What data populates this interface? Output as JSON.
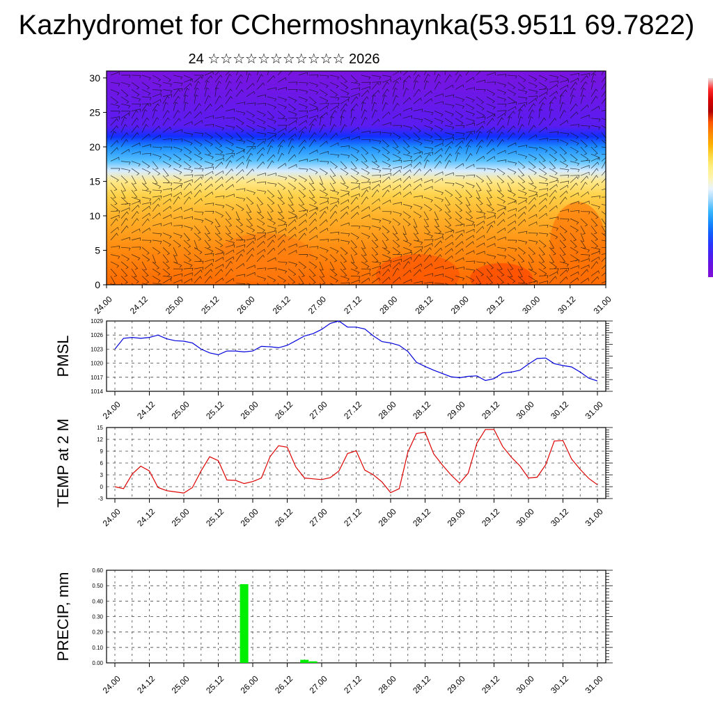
{
  "header": {
    "title": "Kazhydromet for CChermoshnaynka(53.9511 69.7822)",
    "subtitle": "24 ☆☆☆☆☆☆☆☆☆☆☆ 2026"
  },
  "colors": {
    "pmsl_line": "#0000dd",
    "temp_line": "#dd0000",
    "precip_bar": "#00ee00",
    "grid": "#444444",
    "colorbar": [
      "#e8e8e8",
      "#ff2a2a",
      "#d60000",
      "#b00000",
      "#ff5500",
      "#ff8a00",
      "#ffb000",
      "#ffd840",
      "#ffef80",
      "#fff4b0",
      "#e8f4ff",
      "#9fd8ff",
      "#3ab8ff",
      "#1890ff",
      "#1060ff",
      "#2838ff",
      "#4a20f0",
      "#6a10e0",
      "#8010d8"
    ]
  },
  "chart_data": [
    {
      "id": "cross-section",
      "type": "heatmap",
      "title": "",
      "xlabel": "",
      "ylabel": "",
      "ylim": [
        0,
        31
      ],
      "yticks": [
        0,
        5,
        10,
        15,
        20,
        25,
        30
      ],
      "x_tick_labels": [
        "24.00",
        "24.12",
        "25.00",
        "25.12",
        "26.00",
        "26.12",
        "27.00",
        "27.12",
        "28.00",
        "28.12",
        "29.00",
        "29.12",
        "30.00",
        "30.12",
        "31.00"
      ],
      "bands": [
        {
          "level": 0,
          "color": "#ff6a00"
        },
        {
          "level": 5,
          "color": "#ff8a10"
        },
        {
          "level": 10,
          "color": "#ffb22a"
        },
        {
          "level": 13,
          "color": "#ffd24a"
        },
        {
          "level": 15,
          "color": "#ffe88a"
        },
        {
          "level": 16.5,
          "color": "#d8ecff"
        },
        {
          "level": 18,
          "color": "#55c0ff"
        },
        {
          "level": 20,
          "color": "#1c8cff"
        },
        {
          "level": 21.5,
          "color": "#1030ff"
        },
        {
          "level": 23,
          "color": "#5a1cf0"
        },
        {
          "level": 31,
          "color": "#7a14e0"
        }
      ]
    },
    {
      "id": "pmsl",
      "type": "line",
      "ylabel": "PMSL",
      "ylim": [
        1014,
        1029
      ],
      "yticks": [
        1014,
        1017,
        1020,
        1023,
        1026,
        1029
      ],
      "x_tick_labels": [
        "24.00",
        "24.12",
        "25.00",
        "25.12",
        "26.00",
        "26.12",
        "27.00",
        "27.12",
        "28.00",
        "28.12",
        "29.00",
        "29.12",
        "30.00",
        "30.12",
        "31.00"
      ],
      "x": [
        0,
        3,
        6,
        9,
        12,
        15,
        18,
        21,
        24,
        27,
        30,
        33,
        36,
        39,
        42,
        45,
        48,
        51,
        54,
        57,
        60,
        63,
        66,
        69,
        72,
        75,
        78,
        81,
        84,
        87,
        90,
        93,
        96,
        99,
        102,
        105,
        108,
        111,
        114,
        117,
        120,
        123,
        126,
        129,
        132,
        135,
        138,
        141,
        144,
        147,
        150,
        153,
        156,
        159,
        162,
        165,
        168
      ],
      "series": [
        {
          "name": "PMSL",
          "values": [
            1023,
            1025.3,
            1025.5,
            1025.3,
            1025.5,
            1026,
            1025.2,
            1024.8,
            1024.7,
            1024.3,
            1023,
            1022.2,
            1021.8,
            1022.6,
            1022.6,
            1022.4,
            1022.6,
            1023.6,
            1023.5,
            1023.3,
            1023.8,
            1024.8,
            1025.8,
            1026.3,
            1027.2,
            1028.5,
            1029,
            1027.7,
            1027.7,
            1027.3,
            1025.8,
            1024.6,
            1024.3,
            1023.8,
            1022.5,
            1020.2,
            1019.3,
            1018.5,
            1017.8,
            1017.1,
            1016.9,
            1017.2,
            1017.3,
            1016.3,
            1016.7,
            1017.9,
            1018.1,
            1018.5,
            1019.8,
            1021,
            1021.1,
            1019.9,
            1019.5,
            1019.2,
            1018.1,
            1016.8,
            1016.2
          ]
        }
      ]
    },
    {
      "id": "temp2m",
      "type": "line",
      "ylabel": "TEMP at 2 M",
      "ylim": [
        -3,
        15
      ],
      "yticks": [
        -3,
        0,
        3,
        6,
        9,
        12,
        15
      ],
      "x_tick_labels": [
        "24.00",
        "24.12",
        "25.00",
        "25.12",
        "26.00",
        "26.12",
        "27.00",
        "27.12",
        "28.00",
        "28.12",
        "29.00",
        "29.12",
        "30.00",
        "30.12",
        "31.00"
      ],
      "x": [
        0,
        3,
        6,
        9,
        12,
        15,
        18,
        21,
        24,
        27,
        30,
        33,
        36,
        39,
        42,
        45,
        48,
        51,
        54,
        57,
        60,
        63,
        66,
        69,
        72,
        75,
        78,
        81,
        84,
        87,
        90,
        93,
        96,
        99,
        102,
        105,
        108,
        111,
        114,
        117,
        120,
        123,
        126,
        129,
        132,
        135,
        138,
        141,
        144,
        147,
        150,
        153,
        156,
        159,
        162,
        165,
        168
      ],
      "series": [
        {
          "name": "TEMP",
          "values": [
            0,
            -0.5,
            3.2,
            5.2,
            4,
            -0.2,
            -1,
            -1.3,
            -1.6,
            -0.2,
            4,
            7.6,
            6.6,
            1.7,
            1.6,
            0.8,
            1.3,
            2.2,
            7.6,
            10.4,
            10,
            5,
            2.2,
            2,
            1.8,
            2.3,
            4,
            8.4,
            9.1,
            4.2,
            3,
            1.2,
            -1.5,
            -0.5,
            8.8,
            13.5,
            13.8,
            8.3,
            5.5,
            3,
            0.9,
            3.4,
            11,
            14.5,
            14.5,
            10.2,
            7.5,
            5.3,
            2.2,
            2.4,
            5.6,
            11.6,
            11.7,
            7,
            4.4,
            2.1,
            0.5
          ]
        }
      ]
    },
    {
      "id": "precip",
      "type": "bar",
      "ylabel": "PRECIP, mm",
      "ylim": [
        0,
        0.6
      ],
      "yticks": [
        0,
        0.1,
        0.2,
        0.3,
        0.4,
        0.5,
        0.6
      ],
      "ytick_labels": [
        "0.00",
        "0.10",
        "0.20",
        "0.30",
        "0.40",
        "0.50",
        "0.60"
      ],
      "x_tick_labels": [
        "24.00",
        "24.12",
        "25.00",
        "25.12",
        "26.00",
        "26.12",
        "27.00",
        "27.12",
        "28.00",
        "28.12",
        "29.00",
        "29.12",
        "30.00",
        "30.12",
        "31.00"
      ],
      "bars": [
        {
          "x": 45,
          "value": 0.51
        },
        {
          "x": 66,
          "value": 0.02
        },
        {
          "x": 69,
          "value": 0.01
        }
      ]
    }
  ]
}
